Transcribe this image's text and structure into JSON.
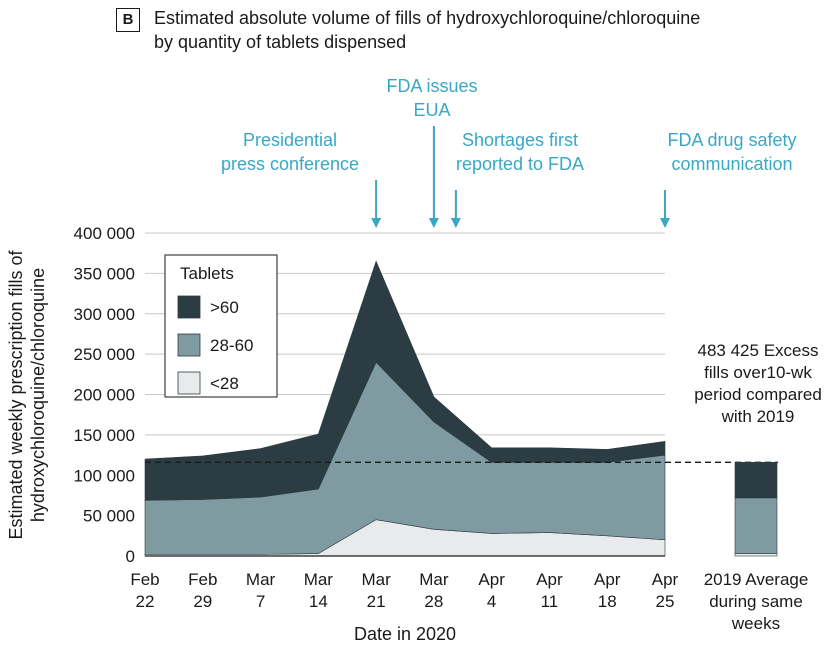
{
  "panel": {
    "letter": "B"
  },
  "chart_data": {
    "type": "area",
    "title": "Estimated absolute volume of fills of hydroxychloroquine/chloroquine\nby quantity of tablets dispensed",
    "xlabel": "Date in 2020",
    "ylabel": "Estimated weekly prescription fills of hydroxychloroquine/chloroquine",
    "ylim": [
      0,
      400000
    ],
    "yticks": [
      "0",
      "50 000",
      "100 000",
      "150 000",
      "200 000",
      "250 000",
      "300 000",
      "350 000",
      "400 000"
    ],
    "ytick_values": [
      0,
      50000,
      100000,
      150000,
      200000,
      250000,
      300000,
      350000,
      400000
    ],
    "x": [
      "Feb 22",
      "Feb 29",
      "Mar 7",
      "Mar 14",
      "Mar 21",
      "Mar 28",
      "Apr 4",
      "Apr 11",
      "Apr 18",
      "Apr 25"
    ],
    "stacked": true,
    "grid": "horizontal",
    "legend_position": "top-left",
    "legend_title": "Tablets",
    "series": [
      {
        "name": "<28",
        "color": "#e8eaec",
        "values": [
          2000,
          2000,
          2000,
          3000,
          45000,
          33000,
          28000,
          29000,
          25000,
          20000
        ]
      },
      {
        "name": "28-60",
        "color": "#7f9aa0",
        "values": [
          67000,
          68000,
          71000,
          80000,
          195000,
          133000,
          88000,
          87000,
          91000,
          105000
        ]
      },
      {
        "name": ">60",
        "color": "#2b3c42",
        "values": [
          51000,
          54000,
          60000,
          68000,
          125000,
          31000,
          18000,
          18000,
          16000,
          17000
        ]
      }
    ],
    "baseline": {
      "value": 116000,
      "style": "dashed"
    },
    "comparison_bar": {
      "label": "2019 Average during same weeks",
      "values": {
        "<28": 3000,
        "28-60": 69000,
        ">60": 44000
      }
    },
    "annotations": [
      {
        "text": "Presidential press conference",
        "x": "Mar 21"
      },
      {
        "text": "FDA issues EUA",
        "x": "Mar 28"
      },
      {
        "text": "Shortages first reported to FDA",
        "x": "Mar 31"
      },
      {
        "text": "FDA drug safety communication",
        "x": "Apr 25"
      }
    ],
    "excess_note": "483 425 Excess fills over10-wk period compared with 2019",
    "annotation_color": "#3aa7c5"
  }
}
